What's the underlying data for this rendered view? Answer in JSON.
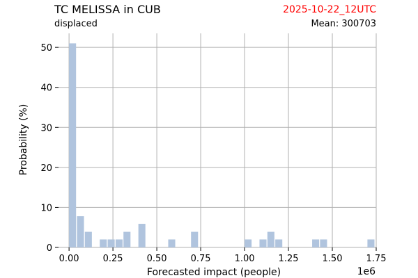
{
  "header": {
    "title": "TC MELISSA in CUB",
    "run_time": "2025-10-22_12UTC",
    "run_time_color": "#ff0000",
    "subtitle": "displaced",
    "mean_label": "Mean: 300703"
  },
  "chart_data": {
    "type": "bar",
    "xlabel": "Forecasted impact (people)",
    "ylabel": "Probability (%)",
    "x_offset_label": "1e6",
    "xlim": [
      -0.06,
      1.75
    ],
    "ylim": [
      0,
      53.5
    ],
    "x_ticks": [
      0.0,
      0.25,
      0.5,
      0.75,
      1.0,
      1.25,
      1.5,
      1.75
    ],
    "x_tick_labels": [
      "0.00",
      "0.25",
      "0.50",
      "0.75",
      "1.00",
      "1.25",
      "1.50",
      "1.75"
    ],
    "y_ticks": [
      0,
      10,
      20,
      30,
      40,
      50
    ],
    "y_tick_labels": [
      "0",
      "10",
      "20",
      "30",
      "40",
      "50"
    ],
    "grid": true,
    "bar_color": "#b0c4de",
    "bin_width": 0.04,
    "bars": [
      {
        "x": 0.02,
        "value": 51
      },
      {
        "x": 0.065,
        "value": 7.8
      },
      {
        "x": 0.11,
        "value": 3.9
      },
      {
        "x": 0.195,
        "value": 2
      },
      {
        "x": 0.24,
        "value": 2
      },
      {
        "x": 0.285,
        "value": 2
      },
      {
        "x": 0.33,
        "value": 3.9
      },
      {
        "x": 0.415,
        "value": 5.9
      },
      {
        "x": 0.585,
        "value": 2
      },
      {
        "x": 0.715,
        "value": 3.9
      },
      {
        "x": 1.02,
        "value": 2
      },
      {
        "x": 1.105,
        "value": 2
      },
      {
        "x": 1.15,
        "value": 3.9
      },
      {
        "x": 1.195,
        "value": 2
      },
      {
        "x": 1.405,
        "value": 2
      },
      {
        "x": 1.45,
        "value": 2
      },
      {
        "x": 1.72,
        "value": 2
      }
    ]
  }
}
